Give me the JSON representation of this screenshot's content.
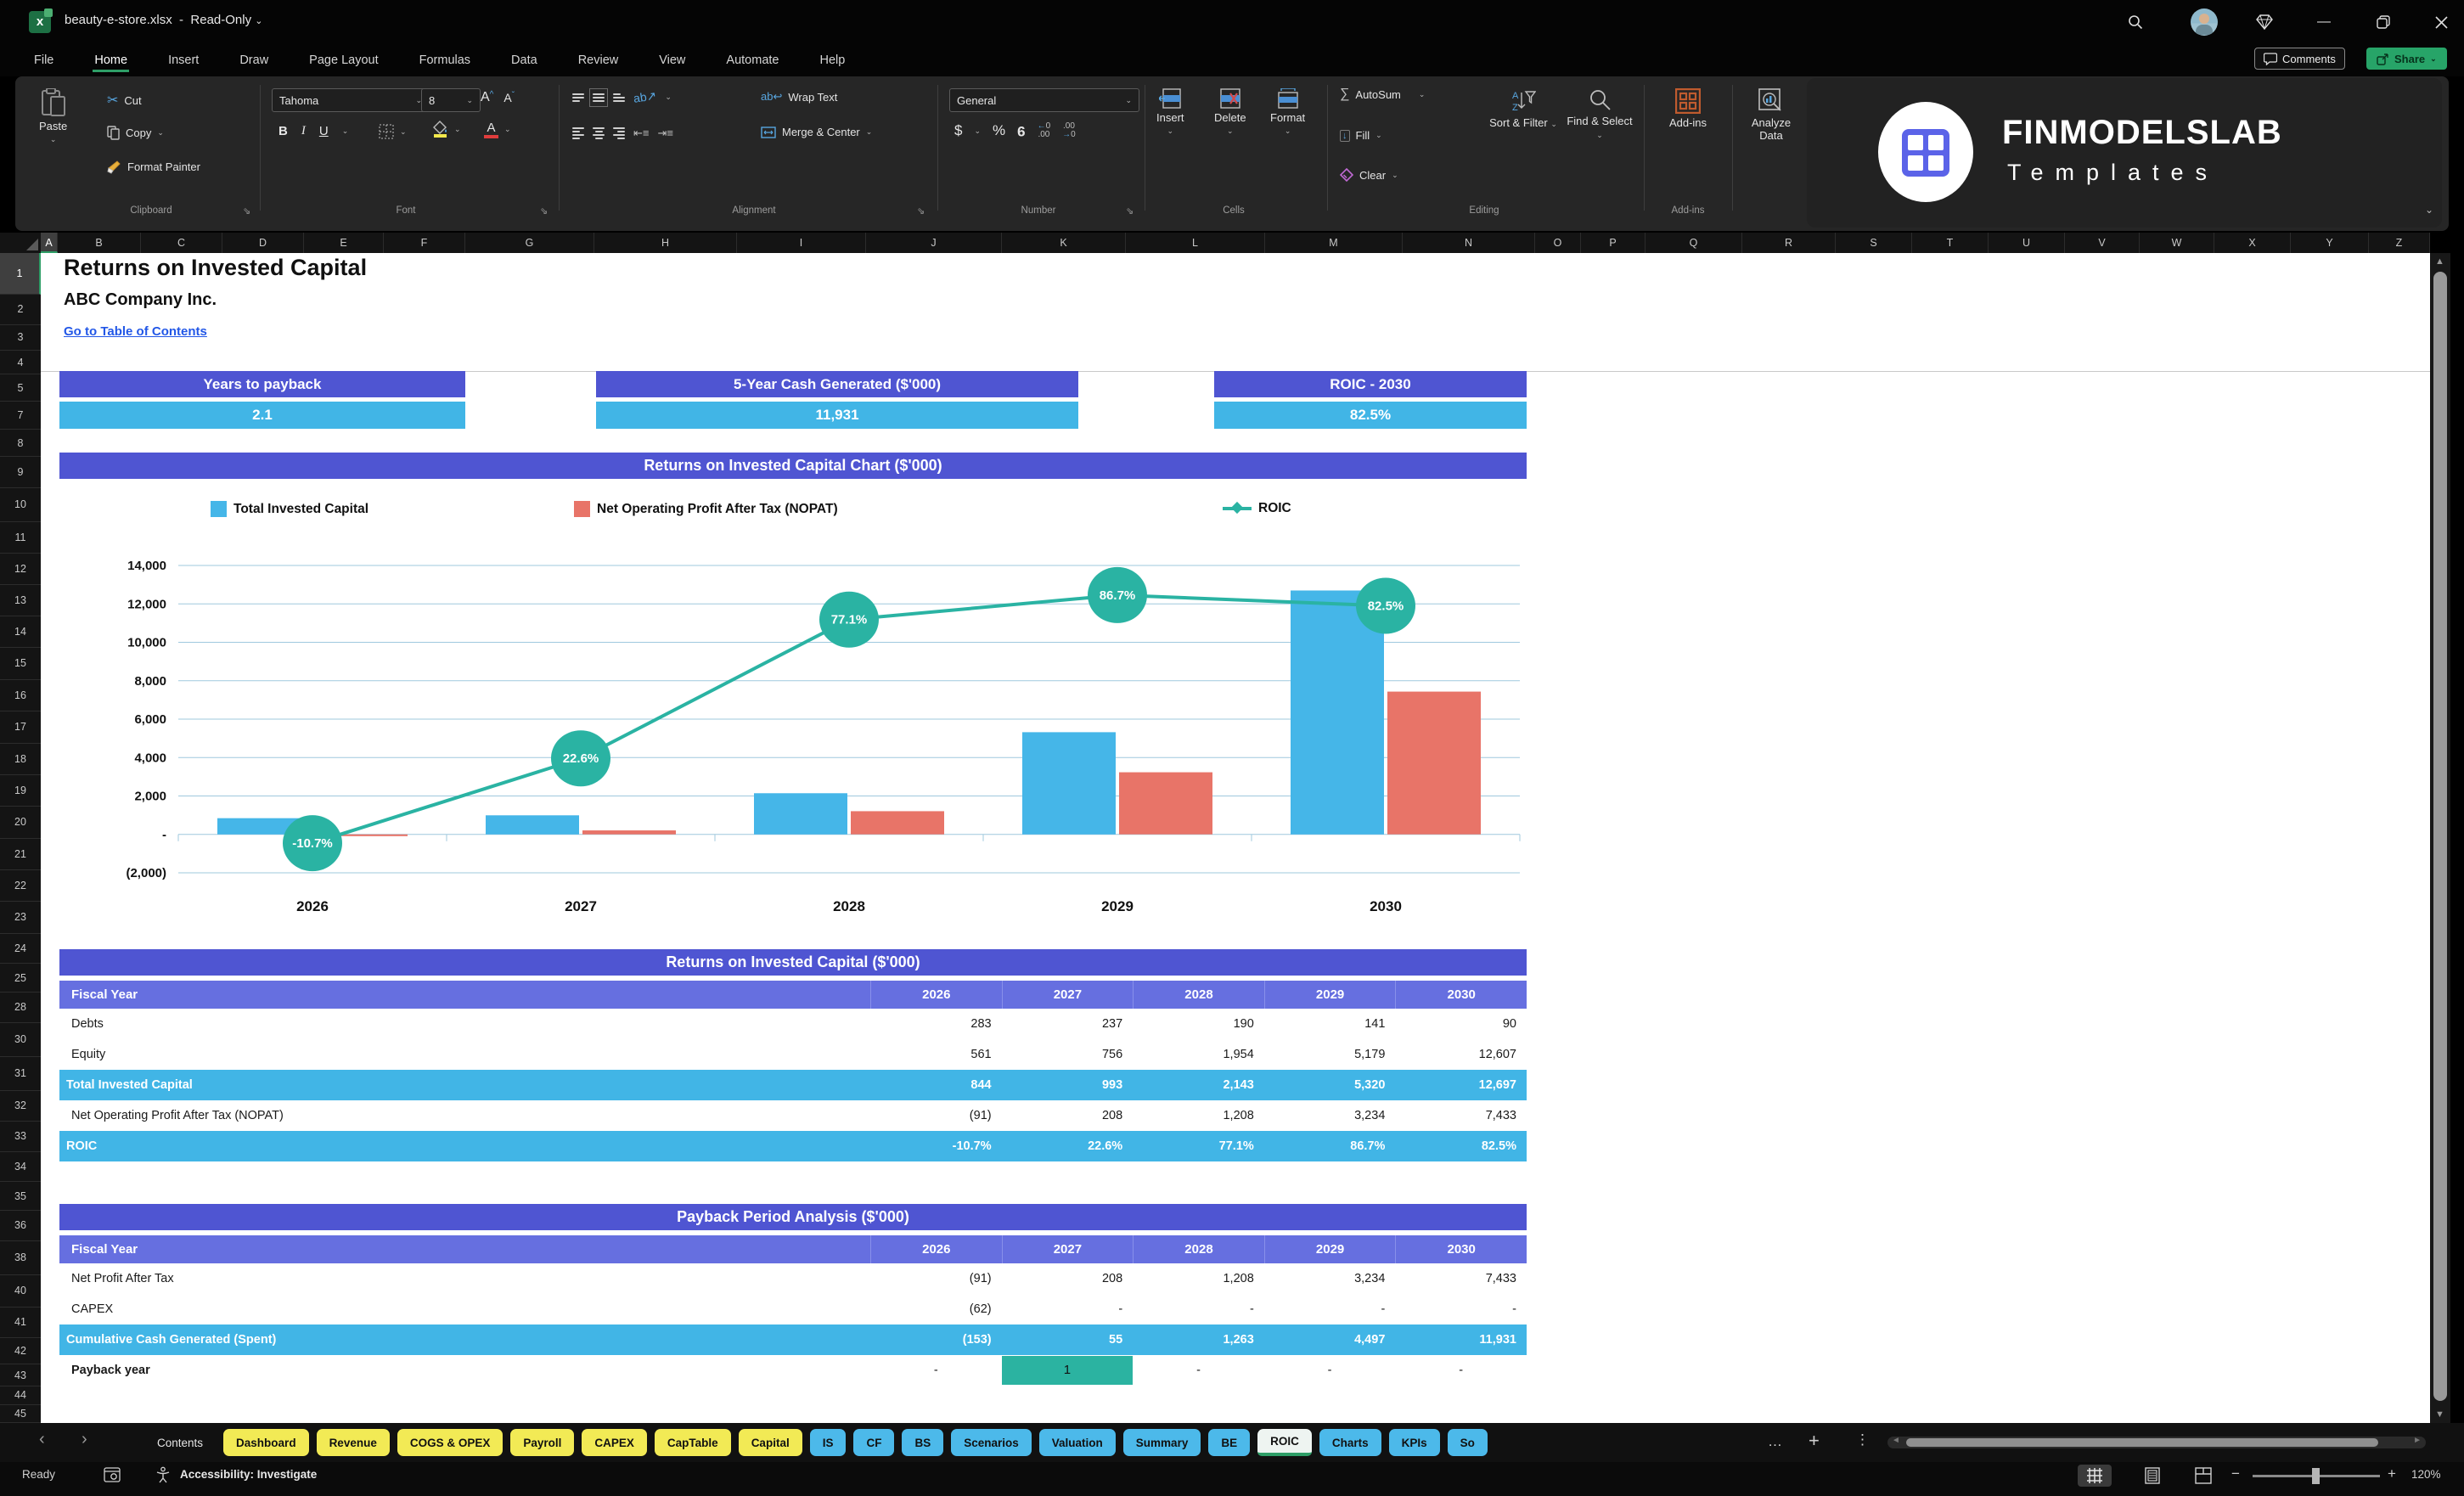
{
  "titlebar": {
    "filename": "beauty-e-store.xlsx",
    "mode": "Read-Only"
  },
  "menu": {
    "tabs": [
      "File",
      "Home",
      "Insert",
      "Draw",
      "Page Layout",
      "Formulas",
      "Data",
      "Review",
      "View",
      "Automate",
      "Help"
    ],
    "active": "Home",
    "comments_label": "Comments",
    "share_label": "Share"
  },
  "ribbon": {
    "clipboard": {
      "label": "Clipboard",
      "paste": "Paste",
      "cut": "Cut",
      "copy": "Copy",
      "format_painter": "Format Painter"
    },
    "font": {
      "label": "Font",
      "family": "Tahoma",
      "size": "8",
      "bold": "B",
      "italic": "I",
      "underline": "U"
    },
    "alignment": {
      "label": "Alignment",
      "wrap": "Wrap Text",
      "merge": "Merge & Center"
    },
    "number": {
      "label": "Number",
      "format": "General",
      "currency": "$",
      "percent": "%",
      "comma": "9"
    },
    "cells": {
      "label": "Cells",
      "insert": "Insert",
      "delete": "Delete",
      "format": "Format"
    },
    "editing": {
      "label": "Editing",
      "autosum": "AutoSum",
      "fill": "Fill",
      "clear": "Clear",
      "sort": "Sort & Filter",
      "find": "Find & Select"
    },
    "addins": {
      "label": "Add-ins",
      "addins": "Add-ins",
      "analyze_line1": "Analyze",
      "analyze_line2": "Data"
    },
    "logo_title": "FINMODELSLAB",
    "logo_subtitle": "Templates"
  },
  "sheet": {
    "columns": [
      "A",
      "B",
      "C",
      "D",
      "E",
      "F",
      "G",
      "H",
      "I",
      "J",
      "K",
      "L",
      "M",
      "N",
      "O",
      "P",
      "Q",
      "R",
      "S",
      "T",
      "U",
      "V",
      "W",
      "X",
      "Y",
      "Z"
    ],
    "rows": [
      1,
      2,
      3,
      4,
      5,
      7,
      8,
      9,
      10,
      11,
      12,
      13,
      14,
      15,
      16,
      17,
      18,
      19,
      20,
      21,
      22,
      23,
      24,
      25,
      28,
      30,
      31,
      32,
      33,
      34,
      35,
      36,
      38,
      40,
      41,
      42,
      43,
      44,
      45
    ],
    "title": "Returns on Invested Capital",
    "subtitle": "ABC Company Inc.",
    "link": "Go to Table of Contents",
    "kpis": [
      {
        "label": "Years to payback",
        "value": "2.1"
      },
      {
        "label": "5-Year Cash Generated ($'000)",
        "value": "11,931"
      },
      {
        "label": "ROIC - 2030",
        "value": "82.5%"
      }
    ]
  },
  "chart_data": {
    "type": "bar",
    "title": "Returns on Invested Capital Chart ($'000)",
    "categories": [
      "2026",
      "2027",
      "2028",
      "2029",
      "2030"
    ],
    "series": [
      {
        "name": "Total Invested Capital",
        "type": "bar",
        "color": "#45b6e8",
        "values": [
          844,
          993,
          2143,
          5320,
          12697
        ]
      },
      {
        "name": "Net Operating Profit After Tax (NOPAT)",
        "type": "bar",
        "color": "#e87468",
        "values": [
          -91,
          208,
          1208,
          3234,
          7433
        ]
      },
      {
        "name": "ROIC",
        "type": "line",
        "color": "#2ab3a3",
        "values_pct": [
          -10.7,
          22.6,
          77.1,
          86.7,
          82.5
        ],
        "point_labels": [
          "-10.7%",
          "22.6%",
          "77.1%",
          "86.7%",
          "82.5%"
        ]
      }
    ],
    "xlabel": "",
    "ylabel": "",
    "y_axis": {
      "min": -2000,
      "max": 14000,
      "step": 2000,
      "tick_labels": [
        "14,000",
        "12,000",
        "10,000",
        "8,000",
        "6,000",
        "4,000",
        "2,000",
        "-",
        "(2,000)"
      ]
    },
    "grid": true,
    "legend_position": "top"
  },
  "roic_table": {
    "title": "Returns on Invested Capital ($'000)",
    "header": [
      "Fiscal Year",
      "2026",
      "2027",
      "2028",
      "2029",
      "2030"
    ],
    "rows": [
      {
        "label": "Debts",
        "values": [
          "283",
          "237",
          "190",
          "141",
          "90"
        ],
        "style": "plain"
      },
      {
        "label": "Equity",
        "values": [
          "561",
          "756",
          "1,954",
          "5,179",
          "12,607"
        ],
        "style": "plain"
      },
      {
        "label": "Total Invested Capital",
        "values": [
          "844",
          "993",
          "2,143",
          "5,320",
          "12,697"
        ],
        "style": "highlight"
      },
      {
        "label": "Net Operating Profit After Tax (NOPAT)",
        "values": [
          "(91)",
          "208",
          "1,208",
          "3,234",
          "7,433"
        ],
        "style": "plain"
      },
      {
        "label": "ROIC",
        "values": [
          "-10.7%",
          "22.6%",
          "77.1%",
          "86.7%",
          "82.5%"
        ],
        "style": "highlight"
      }
    ]
  },
  "payback_table": {
    "title": "Payback Period Analysis ($'000)",
    "header": [
      "Fiscal Year",
      "2026",
      "2027",
      "2028",
      "2029",
      "2030"
    ],
    "rows": [
      {
        "label": "Net Profit After Tax",
        "values": [
          "(91)",
          "208",
          "1,208",
          "3,234",
          "7,433"
        ],
        "style": "plain"
      },
      {
        "label": "CAPEX",
        "values": [
          "(62)",
          "-",
          "-",
          "-",
          "-"
        ],
        "style": "plain"
      },
      {
        "label": "Cumulative Cash Generated (Spent)",
        "values": [
          "(153)",
          "55",
          "1,263",
          "4,497",
          "11,931"
        ],
        "style": "highlight"
      },
      {
        "label": "Payback year",
        "values": [
          "-",
          "1",
          "-",
          "-",
          "-"
        ],
        "style": "payback",
        "highlight_col": 1
      }
    ]
  },
  "sheet_tabs": {
    "home_tab": "Contents",
    "items": [
      {
        "label": "Dashboard",
        "color": "yellow"
      },
      {
        "label": "Revenue",
        "color": "yellow"
      },
      {
        "label": "COGS & OPEX",
        "color": "yellow"
      },
      {
        "label": "Payroll",
        "color": "yellow"
      },
      {
        "label": "CAPEX",
        "color": "yellow"
      },
      {
        "label": "CapTable",
        "color": "yellow"
      },
      {
        "label": "Capital",
        "color": "yellow"
      },
      {
        "label": "IS",
        "color": "blue"
      },
      {
        "label": "CF",
        "color": "blue"
      },
      {
        "label": "BS",
        "color": "blue"
      },
      {
        "label": "Scenarios",
        "color": "blue"
      },
      {
        "label": "Valuation",
        "color": "blue"
      },
      {
        "label": "Summary",
        "color": "blue"
      },
      {
        "label": "BE",
        "color": "blue"
      },
      {
        "label": "ROIC",
        "color": "active"
      },
      {
        "label": "Charts",
        "color": "blue"
      },
      {
        "label": "KPIs",
        "color": "blue"
      },
      {
        "label": "So",
        "color": "blue"
      }
    ],
    "overflow": "…",
    "add": "+",
    "more": "⋮"
  },
  "statusbar": {
    "ready": "Ready",
    "accessibility": "Accessibility: Investigate",
    "zoom": "120%"
  },
  "colors": {
    "banner_purple": "#4f55d2",
    "header_purple": "#666fe0",
    "value_blue": "#41b5e6",
    "bar_blue": "#45b6e8",
    "bar_red": "#e87468",
    "line_teal": "#2ab3a3",
    "tab_yellow": "#f2ea55",
    "tab_blue": "#4cb9ea",
    "accent_green": "#2e9e67",
    "share_green": "#27a468",
    "link_blue": "#2257e7"
  }
}
